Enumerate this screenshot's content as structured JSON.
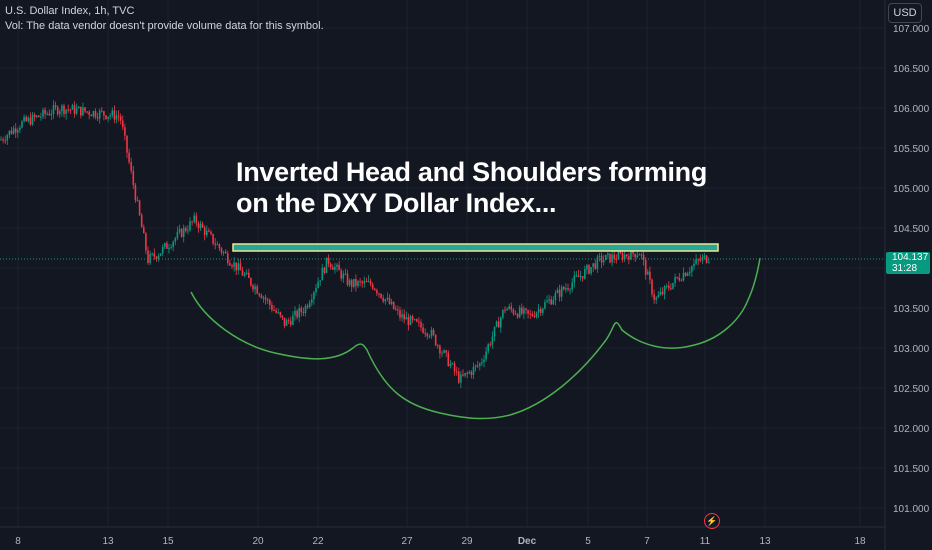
{
  "header": {
    "symbol_line": "U.S. Dollar Index, 1h, TVC",
    "volume_note": "Vol: The data vendor doesn't provide volume data for this symbol."
  },
  "currency_button": "USD",
  "annotation": {
    "line1": "Inverted Head and Shoulders forming",
    "line2": "on the DXY Dollar Index..."
  },
  "last_price": {
    "value": "104.137",
    "countdown": "31:28",
    "color": "#089981"
  },
  "colors": {
    "background": "#131722",
    "up": "#089981",
    "down": "#f23645",
    "pattern_curve": "#4caf50",
    "neckline_fill": "#26a69a",
    "neckline_border": "#f0e68c",
    "event_icon": "#f23645"
  },
  "event_icon": "lightning-bolt-icon",
  "chart_data": {
    "type": "candlestick",
    "y_axis": {
      "ticks": [
        "107.000",
        "106.500",
        "106.000",
        "105.500",
        "105.000",
        "104.500",
        "104.000",
        "103.500",
        "103.000",
        "102.500",
        "102.000",
        "101.500",
        "101.000"
      ],
      "range": [
        100.9,
        107.3
      ]
    },
    "x_axis": {
      "ticks": [
        "8",
        "13",
        "15",
        "20",
        "22",
        "27",
        "29",
        "Dec",
        "5",
        "7",
        "11",
        "13",
        "18"
      ]
    },
    "series_outline": [
      {
        "x": "8",
        "y": 105.6
      },
      {
        "x": "8.5",
        "y": 105.8
      },
      {
        "x": "10",
        "y": 106.0
      },
      {
        "x": "13",
        "y": 105.9
      },
      {
        "x": "14",
        "y": 104.1
      },
      {
        "x": "15",
        "y": 104.2
      },
      {
        "x": "17",
        "y": 104.6
      },
      {
        "x": "18",
        "y": 104.1
      },
      {
        "x": "19",
        "y": 103.7
      },
      {
        "x": "20",
        "y": 103.3
      },
      {
        "x": "21",
        "y": 103.5
      },
      {
        "x": "22",
        "y": 104.1
      },
      {
        "x": "23",
        "y": 103.8
      },
      {
        "x": "24",
        "y": 103.8
      },
      {
        "x": "26",
        "y": 103.4
      },
      {
        "x": "27",
        "y": 103.2
      },
      {
        "x": "28",
        "y": 102.6
      },
      {
        "x": "29",
        "y": 102.8
      },
      {
        "x": "30",
        "y": 103.5
      },
      {
        "x": "Dec",
        "y": 103.4
      },
      {
        "x": "4",
        "y": 103.8
      },
      {
        "x": "5",
        "y": 104.1
      },
      {
        "x": "6",
        "y": 104.2
      },
      {
        "x": "7",
        "y": 103.6
      },
      {
        "x": "8",
        "y": 103.9
      },
      {
        "x": "10",
        "y": 104.1
      },
      {
        "x": "11",
        "y": 104.14
      }
    ],
    "last_value": 104.137,
    "neckline_zone": [
      104.22,
      104.3
    ],
    "pattern": "Inverted Head and Shoulders",
    "grid": true,
    "legend": "none"
  }
}
